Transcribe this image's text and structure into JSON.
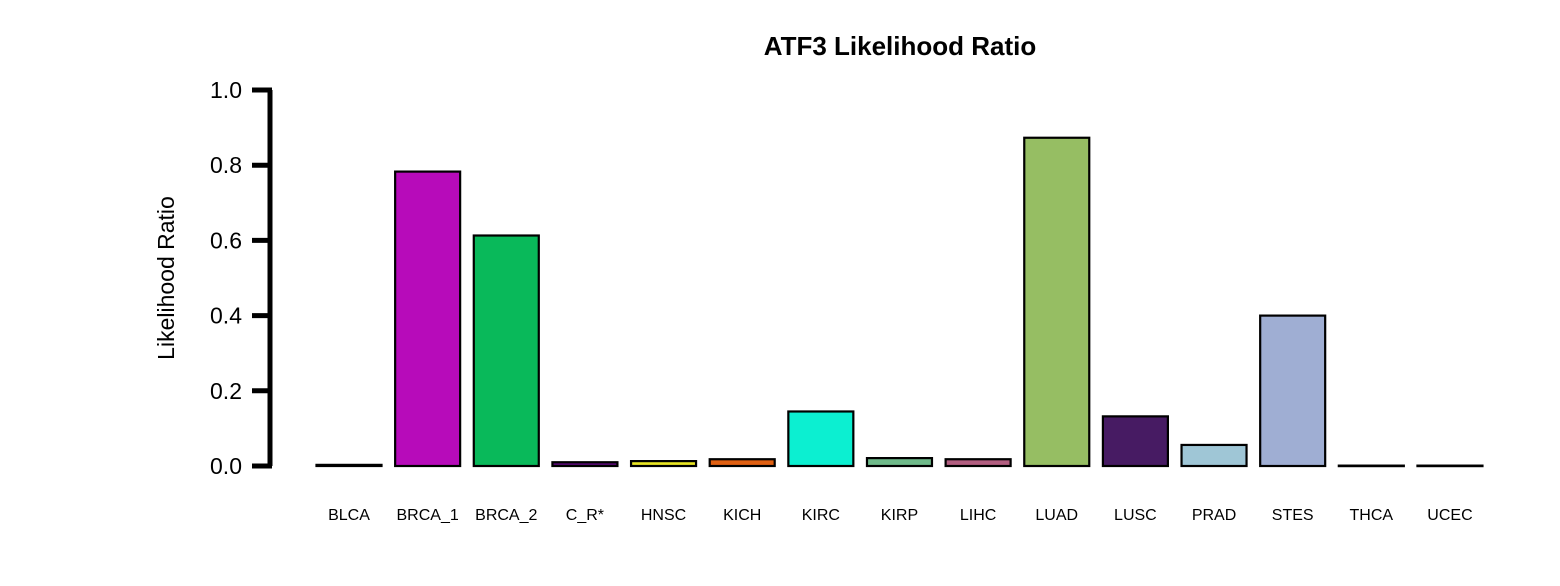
{
  "chart_data": {
    "type": "bar",
    "title": "ATF3 Likelihood Ratio",
    "xlabel": "",
    "ylabel": "Likelihood Ratio",
    "ylim": [
      0,
      1.0
    ],
    "yticks": [
      "0.0",
      "0.2",
      "0.4",
      "0.6",
      "0.8",
      "1.0"
    ],
    "yticks_values": [
      0,
      0.2,
      0.4,
      0.6,
      0.8,
      1.0
    ],
    "grid": false,
    "legend": "none",
    "categories": [
      "BLCA",
      "BRCA_1",
      "BRCA_2",
      "C_R*",
      "HNSC",
      "KICH",
      "KIRC",
      "KIRP",
      "LIHC",
      "LUAD",
      "LUSC",
      "PRAD",
      "STES",
      "THCA",
      "UCEC"
    ],
    "values": [
      0.003,
      0.783,
      0.613,
      0.01,
      0.013,
      0.018,
      0.145,
      0.021,
      0.018,
      0.873,
      0.132,
      0.056,
      0.4,
      0.001,
      0.001
    ],
    "colors": [
      "#C0C0C0",
      "#B70BBA",
      "#09B95A",
      "#5A0A77",
      "#E7E423",
      "#E06012",
      "#0CEFD1",
      "#6FBA8A",
      "#B25E80",
      "#96BE63",
      "#471B63",
      "#9FC6D6",
      "#9FAED3",
      "#D0D0D0",
      "#D0D0D0"
    ]
  }
}
